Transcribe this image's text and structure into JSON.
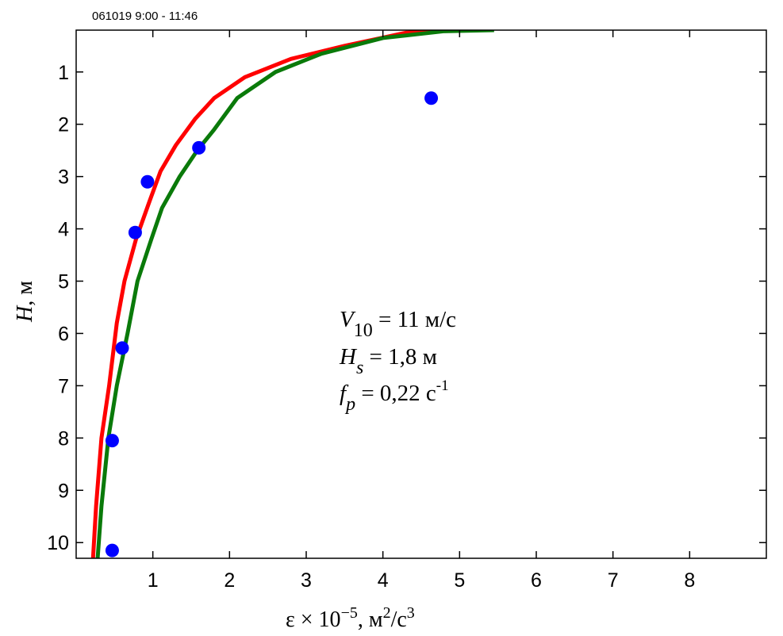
{
  "header": {
    "caption": "061019  9:00 - 11:46"
  },
  "chart_data": {
    "type": "line",
    "xlabel": {
      "base": "ε × 10",
      "exp": "−5",
      "mid": ", м",
      "exp2": "2",
      "end": "/с",
      "exp3": "3"
    },
    "ylabel": {
      "var": "H",
      "rest": ", м"
    },
    "xlim": [
      0,
      9
    ],
    "ylim": [
      0.2,
      10.3
    ],
    "y_inverted": true,
    "x_ticks": [
      "1",
      "2",
      "3",
      "4",
      "5",
      "6",
      "7",
      "8"
    ],
    "y_ticks": [
      "1",
      "2",
      "3",
      "4",
      "5",
      "6",
      "7",
      "8",
      "9",
      "10"
    ],
    "grid": false,
    "series": [
      {
        "color": "#ff0000",
        "points": [
          [
            0.22,
            10.3
          ],
          [
            0.26,
            9.3
          ],
          [
            0.33,
            8.0
          ],
          [
            0.43,
            7.0
          ],
          [
            0.53,
            5.8
          ],
          [
            0.63,
            5.0
          ],
          [
            0.78,
            4.2
          ],
          [
            0.95,
            3.5
          ],
          [
            1.1,
            2.9
          ],
          [
            1.3,
            2.4
          ],
          [
            1.55,
            1.9
          ],
          [
            1.8,
            1.5
          ],
          [
            2.2,
            1.1
          ],
          [
            2.8,
            0.75
          ],
          [
            3.5,
            0.5
          ],
          [
            4.3,
            0.25
          ],
          [
            5.0,
            0.2
          ]
        ]
      },
      {
        "color": "#0a7a0a",
        "points": [
          [
            0.28,
            10.3
          ],
          [
            0.33,
            9.3
          ],
          [
            0.42,
            8.0
          ],
          [
            0.53,
            7.0
          ],
          [
            0.67,
            6.0
          ],
          [
            0.8,
            5.0
          ],
          [
            0.98,
            4.2
          ],
          [
            1.12,
            3.6
          ],
          [
            1.35,
            3.0
          ],
          [
            1.58,
            2.5
          ],
          [
            1.8,
            2.1
          ],
          [
            2.1,
            1.5
          ],
          [
            2.6,
            1.0
          ],
          [
            3.2,
            0.65
          ],
          [
            4.0,
            0.35
          ],
          [
            4.8,
            0.22
          ],
          [
            5.45,
            0.2
          ]
        ]
      },
      {
        "type": "scatter",
        "color": "#0000ff",
        "points": [
          [
            4.63,
            1.5
          ],
          [
            1.6,
            2.45
          ],
          [
            0.93,
            3.1
          ],
          [
            0.77,
            4.07
          ],
          [
            0.6,
            6.28
          ],
          [
            0.47,
            8.05
          ],
          [
            0.47,
            10.15
          ]
        ]
      }
    ],
    "annotation": {
      "line1": {
        "var": "V",
        "sub": "10",
        "rest": " = 11 м/с"
      },
      "line2": {
        "var": "H",
        "sub": "s",
        "rest": " = 1,8 м"
      },
      "line3": {
        "var": "f",
        "sub": "p",
        "rest": " = 0,22 с",
        "sup": "-1"
      }
    }
  }
}
